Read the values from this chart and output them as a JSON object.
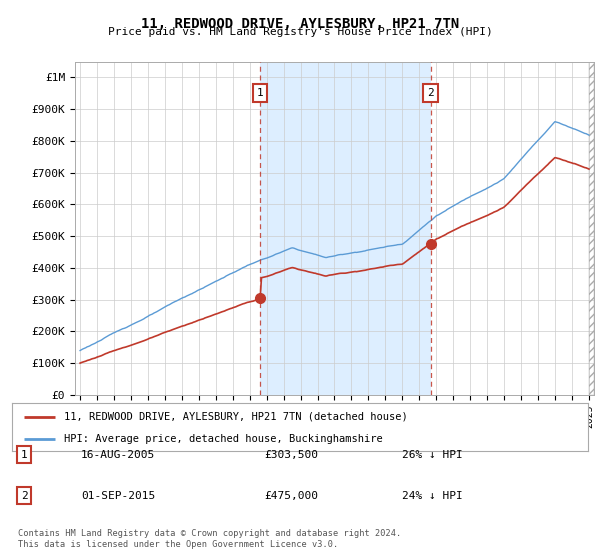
{
  "title": "11, REDWOOD DRIVE, AYLESBURY, HP21 7TN",
  "subtitle": "Price paid vs. HM Land Registry's House Price Index (HPI)",
  "ylabel_ticks": [
    "£0",
    "£100K",
    "£200K",
    "£300K",
    "£400K",
    "£500K",
    "£600K",
    "£700K",
    "£800K",
    "£900K",
    "£1M"
  ],
  "ytick_values": [
    0,
    100000,
    200000,
    300000,
    400000,
    500000,
    600000,
    700000,
    800000,
    900000,
    1000000
  ],
  "ylim": [
    0,
    1050000
  ],
  "xlim_start": 1994.7,
  "xlim_end": 2025.3,
  "hpi_color": "#5b9bd5",
  "price_color": "#c0392b",
  "annotation_box_color": "#c0392b",
  "shading_color": "#ddeeff",
  "purchase1_x": 2005.62,
  "purchase1_y": 303500,
  "purchase1_label": "1",
  "purchase2_x": 2015.67,
  "purchase2_y": 475000,
  "purchase2_label": "2",
  "legend_line1": "11, REDWOOD DRIVE, AYLESBURY, HP21 7TN (detached house)",
  "legend_line2": "HPI: Average price, detached house, Buckinghamshire",
  "table_row1": [
    "1",
    "16-AUG-2005",
    "£303,500",
    "26% ↓ HPI"
  ],
  "table_row2": [
    "2",
    "01-SEP-2015",
    "£475,000",
    "24% ↓ HPI"
  ],
  "footer": "Contains HM Land Registry data © Crown copyright and database right 2024.\nThis data is licensed under the Open Government Licence v3.0.",
  "background_color": "#ffffff",
  "grid_color": "#cccccc"
}
